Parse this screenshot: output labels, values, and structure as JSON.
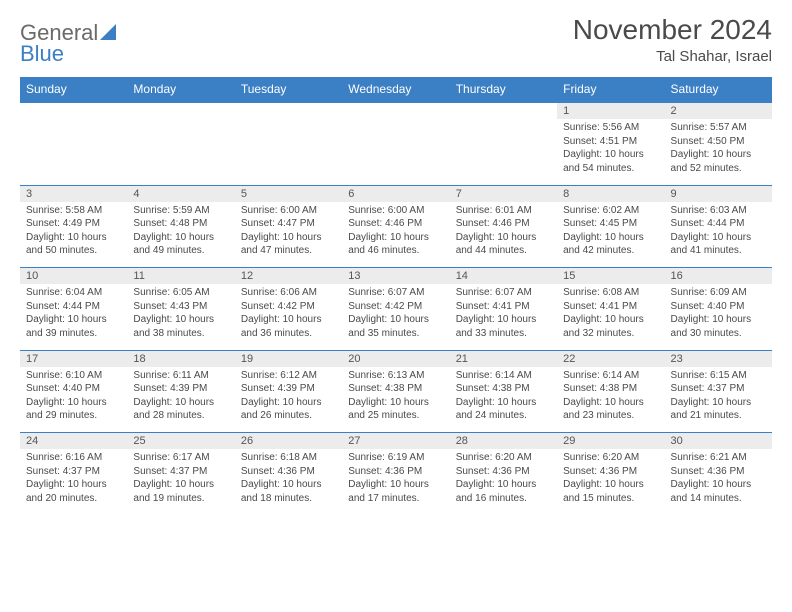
{
  "brand": {
    "name1": "General",
    "name2": "Blue"
  },
  "title": "November 2024",
  "location": "Tal Shahar, Israel",
  "colors": {
    "header_bg": "#3b7fc4",
    "header_text": "#ffffff",
    "daynum_bg": "#ececec",
    "border": "#3b7fc4",
    "text": "#4a4a4a",
    "logo_gray": "#6a6a6a",
    "logo_blue": "#3b7fc4"
  },
  "day_headers": [
    "Sunday",
    "Monday",
    "Tuesday",
    "Wednesday",
    "Thursday",
    "Friday",
    "Saturday"
  ],
  "weeks": [
    {
      "nums": [
        "",
        "",
        "",
        "",
        "",
        "1",
        "2"
      ],
      "info": [
        "",
        "",
        "",
        "",
        "",
        "Sunrise: 5:56 AM\nSunset: 4:51 PM\nDaylight: 10 hours and 54 minutes.",
        "Sunrise: 5:57 AM\nSunset: 4:50 PM\nDaylight: 10 hours and 52 minutes."
      ]
    },
    {
      "nums": [
        "3",
        "4",
        "5",
        "6",
        "7",
        "8",
        "9"
      ],
      "info": [
        "Sunrise: 5:58 AM\nSunset: 4:49 PM\nDaylight: 10 hours and 50 minutes.",
        "Sunrise: 5:59 AM\nSunset: 4:48 PM\nDaylight: 10 hours and 49 minutes.",
        "Sunrise: 6:00 AM\nSunset: 4:47 PM\nDaylight: 10 hours and 47 minutes.",
        "Sunrise: 6:00 AM\nSunset: 4:46 PM\nDaylight: 10 hours and 46 minutes.",
        "Sunrise: 6:01 AM\nSunset: 4:46 PM\nDaylight: 10 hours and 44 minutes.",
        "Sunrise: 6:02 AM\nSunset: 4:45 PM\nDaylight: 10 hours and 42 minutes.",
        "Sunrise: 6:03 AM\nSunset: 4:44 PM\nDaylight: 10 hours and 41 minutes."
      ]
    },
    {
      "nums": [
        "10",
        "11",
        "12",
        "13",
        "14",
        "15",
        "16"
      ],
      "info": [
        "Sunrise: 6:04 AM\nSunset: 4:44 PM\nDaylight: 10 hours and 39 minutes.",
        "Sunrise: 6:05 AM\nSunset: 4:43 PM\nDaylight: 10 hours and 38 minutes.",
        "Sunrise: 6:06 AM\nSunset: 4:42 PM\nDaylight: 10 hours and 36 minutes.",
        "Sunrise: 6:07 AM\nSunset: 4:42 PM\nDaylight: 10 hours and 35 minutes.",
        "Sunrise: 6:07 AM\nSunset: 4:41 PM\nDaylight: 10 hours and 33 minutes.",
        "Sunrise: 6:08 AM\nSunset: 4:41 PM\nDaylight: 10 hours and 32 minutes.",
        "Sunrise: 6:09 AM\nSunset: 4:40 PM\nDaylight: 10 hours and 30 minutes."
      ]
    },
    {
      "nums": [
        "17",
        "18",
        "19",
        "20",
        "21",
        "22",
        "23"
      ],
      "info": [
        "Sunrise: 6:10 AM\nSunset: 4:40 PM\nDaylight: 10 hours and 29 minutes.",
        "Sunrise: 6:11 AM\nSunset: 4:39 PM\nDaylight: 10 hours and 28 minutes.",
        "Sunrise: 6:12 AM\nSunset: 4:39 PM\nDaylight: 10 hours and 26 minutes.",
        "Sunrise: 6:13 AM\nSunset: 4:38 PM\nDaylight: 10 hours and 25 minutes.",
        "Sunrise: 6:14 AM\nSunset: 4:38 PM\nDaylight: 10 hours and 24 minutes.",
        "Sunrise: 6:14 AM\nSunset: 4:38 PM\nDaylight: 10 hours and 23 minutes.",
        "Sunrise: 6:15 AM\nSunset: 4:37 PM\nDaylight: 10 hours and 21 minutes."
      ]
    },
    {
      "nums": [
        "24",
        "25",
        "26",
        "27",
        "28",
        "29",
        "30"
      ],
      "info": [
        "Sunrise: 6:16 AM\nSunset: 4:37 PM\nDaylight: 10 hours and 20 minutes.",
        "Sunrise: 6:17 AM\nSunset: 4:37 PM\nDaylight: 10 hours and 19 minutes.",
        "Sunrise: 6:18 AM\nSunset: 4:36 PM\nDaylight: 10 hours and 18 minutes.",
        "Sunrise: 6:19 AM\nSunset: 4:36 PM\nDaylight: 10 hours and 17 minutes.",
        "Sunrise: 6:20 AM\nSunset: 4:36 PM\nDaylight: 10 hours and 16 minutes.",
        "Sunrise: 6:20 AM\nSunset: 4:36 PM\nDaylight: 10 hours and 15 minutes.",
        "Sunrise: 6:21 AM\nSunset: 4:36 PM\nDaylight: 10 hours and 14 minutes."
      ]
    }
  ]
}
